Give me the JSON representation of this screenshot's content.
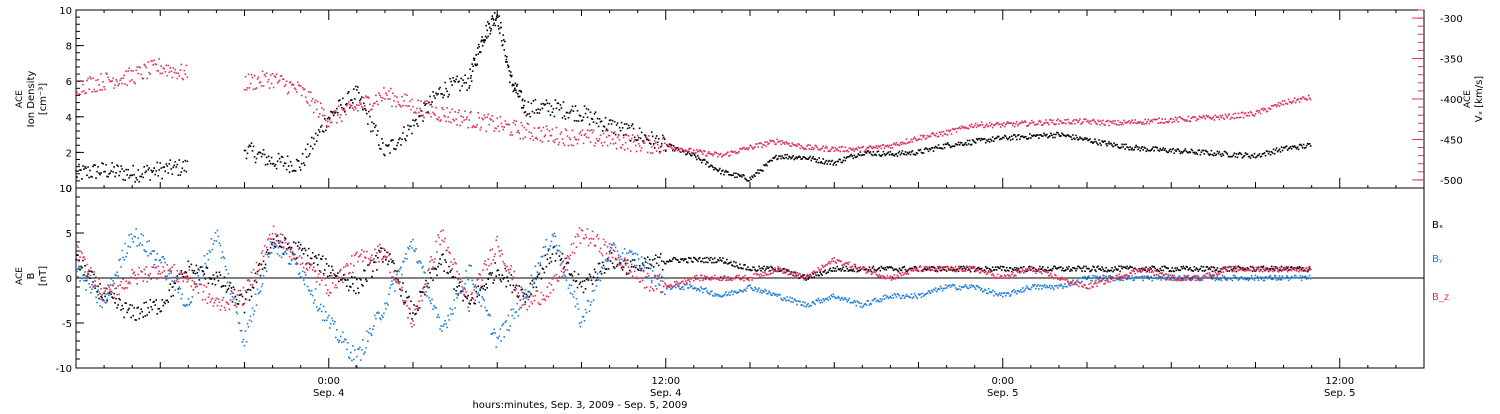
{
  "chart_data": [
    {
      "type": "scatter",
      "panel": "ion-density-velocity",
      "ylabel_lines": [
        "ACE",
        "Ion Density",
        "[cm⁻³]"
      ],
      "ylim": [
        0,
        10
      ],
      "yticks": [
        0,
        2,
        4,
        6,
        8,
        10
      ],
      "y2label_lines": [
        "ACE",
        "Vₓ [km/s]"
      ],
      "y2lim": [
        -510,
        -290
      ],
      "y2ticks": [
        -500,
        -450,
        -400,
        -350,
        -300
      ],
      "xlim": [
        -9,
        39
      ],
      "grid": false,
      "series": [
        {
          "axis": "left",
          "color": "#000000",
          "x": [
            -9,
            -8,
            -7,
            -6,
            -5,
            -4,
            -3,
            -2,
            -1,
            0,
            1,
            2,
            3,
            4,
            5,
            5.5,
            6,
            6.5,
            7,
            8,
            9,
            10,
            11,
            12,
            13,
            14,
            15,
            16,
            17,
            18,
            19,
            20,
            21,
            22,
            23,
            24,
            25,
            26,
            27,
            28,
            29,
            30,
            31,
            32,
            33,
            34,
            35
          ],
          "y": [
            0.8,
            1.0,
            0.8,
            1.0,
            1.2,
            null,
            2.2,
            1.5,
            1.3,
            4.0,
            5.3,
            2.0,
            3.5,
            5.5,
            6.0,
            8.5,
            9.8,
            6.0,
            4.5,
            4.5,
            4.2,
            3.5,
            3.0,
            2.4,
            1.8,
            0.9,
            0.5,
            1.8,
            1.7,
            1.4,
            2.0,
            1.9,
            2.0,
            2.4,
            2.6,
            2.8,
            2.9,
            3.0,
            2.7,
            2.4,
            2.2,
            2.1,
            2.0,
            1.9,
            1.8,
            2.2,
            2.4
          ]
        },
        {
          "axis": "right",
          "color": "#e0305a",
          "x": [
            -9,
            -8,
            -7,
            -6,
            -5,
            -4,
            -3,
            -2,
            -1,
            0,
            1,
            2,
            3,
            4,
            5,
            6,
            7,
            8,
            9,
            10,
            11,
            12,
            13,
            14,
            15,
            16,
            17,
            18,
            19,
            20,
            21,
            22,
            23,
            24,
            25,
            26,
            27,
            28,
            29,
            30,
            31,
            32,
            33,
            34,
            35
          ],
          "y": [
            -385,
            -378,
            -372,
            -360,
            -370,
            null,
            -380,
            -375,
            -390,
            -425,
            -410,
            -395,
            -408,
            -418,
            -425,
            -432,
            -440,
            -445,
            -448,
            -450,
            -455,
            -458,
            -465,
            -470,
            -460,
            -452,
            -460,
            -462,
            -462,
            -458,
            -448,
            -442,
            -432,
            -432,
            -430,
            -428,
            -428,
            -430,
            -428,
            -426,
            -424,
            -422,
            -418,
            -405,
            -398
          ]
        }
      ]
    },
    {
      "type": "scatter",
      "panel": "magnetic-field",
      "ylabel_lines": [
        "ACE",
        "B",
        "[nT]"
      ],
      "ylim": [
        -10,
        10
      ],
      "yticks": [
        -10,
        -5,
        0,
        5,
        10
      ],
      "xlim": [
        -9,
        39
      ],
      "xticks": [
        0,
        12,
        24,
        36
      ],
      "xtick_labels": [
        "0:00",
        "12:00",
        "0:00",
        "12:00"
      ],
      "xtick_sublabels": [
        "Sep. 4",
        "Sep. 4",
        "Sep. 5",
        "Sep. 5"
      ],
      "xlabel": "hours:minutes, Sep.  3, 2009 - Sep.  5, 2009",
      "zero_line": true,
      "grid": false,
      "legend_placement": "right",
      "series": [
        {
          "name": "Bₓ",
          "color": "#000000",
          "x": [
            -9,
            -8,
            -7,
            -6,
            -5,
            -4,
            -3,
            -2,
            -1,
            0,
            1,
            2,
            3,
            4,
            5,
            6,
            7,
            8,
            9,
            10,
            11,
            12,
            13,
            14,
            15,
            16,
            17,
            18,
            19,
            20,
            21,
            22,
            23,
            24,
            25,
            26,
            27,
            28,
            29,
            30,
            31,
            32,
            33,
            34,
            35
          ],
          "y": [
            2,
            -2,
            -4,
            -3,
            1,
            0,
            -3,
            4,
            3,
            1,
            -1,
            3,
            -4,
            2,
            -3,
            1,
            -2,
            3,
            -1,
            2,
            1,
            2,
            2,
            2,
            1,
            1,
            0,
            1,
            1,
            1,
            1,
            1,
            1,
            1,
            1,
            1,
            1,
            1,
            1,
            1,
            1,
            1,
            1,
            1,
            1
          ]
        },
        {
          "name": "Bᵧ",
          "color": "#1f7fd8",
          "x": [
            -9,
            -8,
            -7,
            -6,
            -5,
            -4,
            -3,
            -2,
            -1,
            0,
            1,
            2,
            3,
            4,
            5,
            6,
            7,
            8,
            9,
            10,
            11,
            12,
            13,
            14,
            15,
            16,
            17,
            18,
            19,
            20,
            21,
            22,
            23,
            24,
            25,
            26,
            27,
            28,
            29,
            30,
            31,
            32,
            33,
            34,
            35
          ],
          "y": [
            1,
            -3,
            5,
            2,
            -3,
            5,
            -7,
            4,
            1,
            -5,
            -9,
            -3,
            4,
            -6,
            1,
            -7,
            -2,
            5,
            -5,
            3,
            2,
            -1,
            -1,
            -2,
            -1,
            -2,
            -3,
            -2,
            -3,
            -2,
            -2,
            -1,
            -1,
            -2,
            -1,
            -1,
            0,
            0,
            0,
            0,
            0,
            0,
            0,
            0,
            0
          ]
        },
        {
          "name": "B_z",
          "color": "#e0305a",
          "x": [
            -9,
            -8,
            -7,
            -6,
            -5,
            -4,
            -3,
            -2,
            -1,
            0,
            1,
            2,
            3,
            4,
            5,
            6,
            7,
            8,
            9,
            10,
            11,
            12,
            13,
            14,
            15,
            16,
            17,
            18,
            19,
            20,
            21,
            22,
            23,
            24,
            25,
            26,
            27,
            28,
            29,
            30,
            31,
            32,
            33,
            34,
            35
          ],
          "y": [
            3,
            -2,
            0,
            1,
            0,
            -3,
            -2,
            5,
            2,
            -1,
            2,
            3,
            -5,
            5,
            -3,
            4,
            -3,
            -1,
            5,
            3,
            0,
            -1,
            0,
            0,
            0,
            1,
            0,
            2,
            1,
            0,
            1,
            1,
            1,
            0,
            1,
            0,
            -1,
            0,
            1,
            0,
            0,
            1,
            1,
            1,
            1
          ]
        }
      ]
    }
  ]
}
